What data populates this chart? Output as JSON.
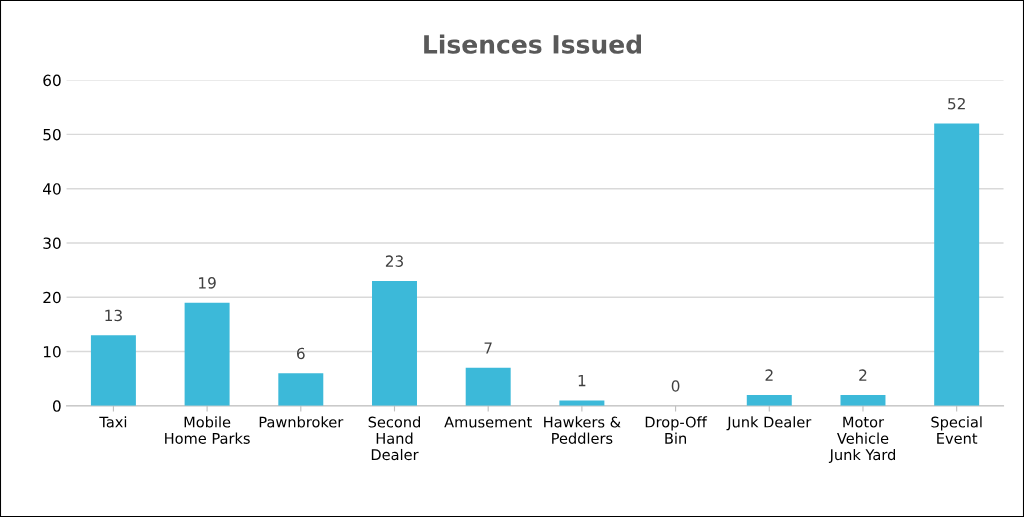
{
  "chart_data": {
    "type": "bar",
    "title": "Lisences Issued",
    "categories": [
      "Taxi",
      "Mobile\nHome Parks",
      "Pawnbroker",
      "Second\nHand\nDealer",
      "Amusement",
      "Hawkers &\nPeddlers",
      "Drop-Off\nBin",
      "Junk Dealer",
      "Motor\nVehicle\nJunk Yard",
      "Special\nEvent"
    ],
    "values": [
      13,
      19,
      6,
      23,
      7,
      1,
      0,
      2,
      2,
      52
    ],
    "color": "#3cb9d9",
    "ylim": [
      0,
      60
    ],
    "yticks": [
      0,
      10,
      20,
      30,
      40,
      50,
      60
    ],
    "grid": "y",
    "data_labels": true
  }
}
